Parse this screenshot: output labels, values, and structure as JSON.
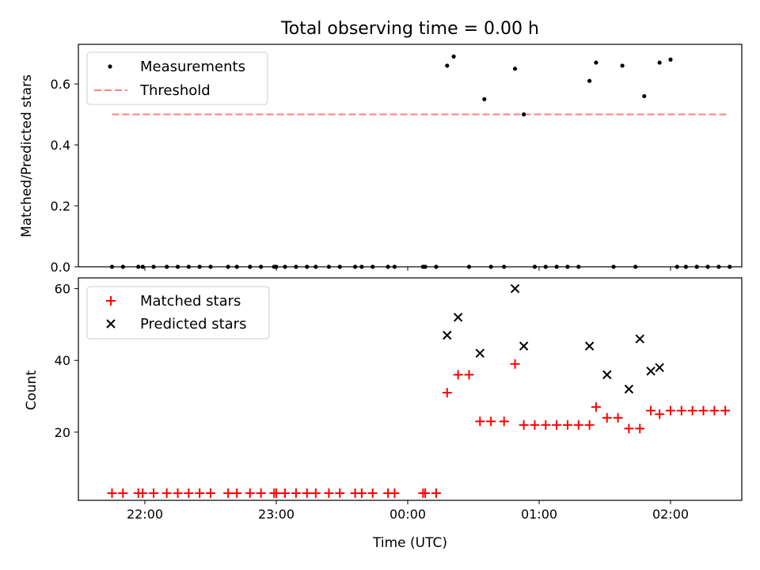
{
  "title": "Total observing time = 0.00 h",
  "xlabel": "Time (UTC)",
  "x_ticks": [
    "22:00",
    "23:00",
    "00:00",
    "01:00",
    "02:00"
  ],
  "colors": {
    "measurement": "#000000",
    "threshold": "#ff7f7f",
    "matched": "#ff0000",
    "predicted": "#000000"
  },
  "chart_data": [
    {
      "type": "scatter",
      "title": "Total observing time = 0.00 h",
      "xlabel": "",
      "ylabel": "Matched/Predicted stars",
      "y_ticks": [
        "0.0",
        "0.2",
        "0.4",
        "0.6"
      ],
      "ylim": [
        0,
        0.73
      ],
      "grid": false,
      "legend": "top-left",
      "series": [
        {
          "name": "Measurements",
          "marker": "dot",
          "x": [
            "21:45",
            "21:50",
            "21:57",
            "21:59",
            "22:04",
            "22:10",
            "22:15",
            "22:20",
            "22:25",
            "22:30",
            "22:38",
            "22:42",
            "22:48",
            "22:53",
            "22:59",
            "23:00",
            "23:04",
            "23:09",
            "23:14",
            "23:18",
            "23:24",
            "23:29",
            "23:36",
            "23:39",
            "23:44",
            "23:51",
            "23:54",
            "00:07",
            "00:08",
            "00:13",
            "00:18",
            "00:21",
            "00:28",
            "00:35",
            "00:38",
            "00:44",
            "00:49",
            "00:53",
            "00:58",
            "01:03",
            "01:08",
            "01:13",
            "01:18",
            "01:23",
            "01:26",
            "01:34",
            "01:38",
            "01:44",
            "01:48",
            "01:55",
            "02:00",
            "02:03",
            "02:07",
            "02:12",
            "02:17",
            "02:22",
            "02:27"
          ],
          "y": [
            0,
            0,
            0,
            0,
            0,
            0,
            0,
            0,
            0,
            0,
            0,
            0,
            0,
            0,
            0,
            0,
            0,
            0,
            0,
            0,
            0,
            0,
            0,
            0,
            0,
            0,
            0,
            0,
            0,
            0,
            0.66,
            0.69,
            0,
            0.55,
            0,
            0,
            0.65,
            0.5,
            0,
            0,
            0,
            0,
            0,
            0.61,
            0.67,
            0,
            0.66,
            0,
            0.56,
            0.67,
            0.68,
            0,
            0,
            0,
            0,
            0,
            0
          ]
        },
        {
          "name": "Threshold",
          "style": "dashed",
          "x": [
            "21:45",
            "02:27"
          ],
          "y": [
            0.5,
            0.5
          ]
        }
      ]
    },
    {
      "type": "scatter",
      "xlabel": "Time (UTC)",
      "ylabel": "Count",
      "y_ticks": [
        "20",
        "40",
        "60"
      ],
      "ylim": [
        1,
        63
      ],
      "grid": false,
      "legend": "top-left",
      "series": [
        {
          "name": "Matched stars",
          "marker": "plus",
          "x": [
            "21:45",
            "21:50",
            "21:57",
            "21:59",
            "22:04",
            "22:10",
            "22:15",
            "22:20",
            "22:25",
            "22:30",
            "22:38",
            "22:42",
            "22:48",
            "22:53",
            "22:59",
            "23:00",
            "23:04",
            "23:09",
            "23:14",
            "23:18",
            "23:24",
            "23:29",
            "23:36",
            "23:39",
            "23:44",
            "23:51",
            "23:54",
            "00:07",
            "00:08",
            "00:13",
            "00:18",
            "00:23",
            "00:28",
            "00:33",
            "00:38",
            "00:44",
            "00:49",
            "00:53",
            "00:58",
            "01:03",
            "01:08",
            "01:13",
            "01:18",
            "01:23",
            "01:26",
            "01:31",
            "01:36",
            "01:41",
            "01:46",
            "01:51",
            "01:55",
            "02:00",
            "02:05",
            "02:10",
            "02:15",
            "02:20",
            "02:25"
          ],
          "y": [
            3,
            3,
            3,
            3,
            3,
            3,
            3,
            3,
            3,
            3,
            3,
            3,
            3,
            3,
            3,
            3,
            3,
            3,
            3,
            3,
            3,
            3,
            3,
            3,
            3,
            3,
            3,
            3,
            3,
            3,
            31,
            36,
            36,
            23,
            23,
            23,
            39,
            22,
            22,
            22,
            22,
            22,
            22,
            22,
            27,
            24,
            24,
            21,
            21,
            26,
            25,
            26,
            26,
            26,
            26,
            26,
            26
          ]
        },
        {
          "name": "Predicted stars",
          "marker": "x",
          "x": [
            "00:18",
            "00:23",
            "00:33",
            "00:49",
            "00:53",
            "01:23",
            "01:31",
            "01:41",
            "01:46",
            "01:51",
            "01:55"
          ],
          "y": [
            47,
            52,
            42,
            60,
            44,
            44,
            36,
            32,
            46,
            37,
            38
          ]
        }
      ]
    }
  ]
}
